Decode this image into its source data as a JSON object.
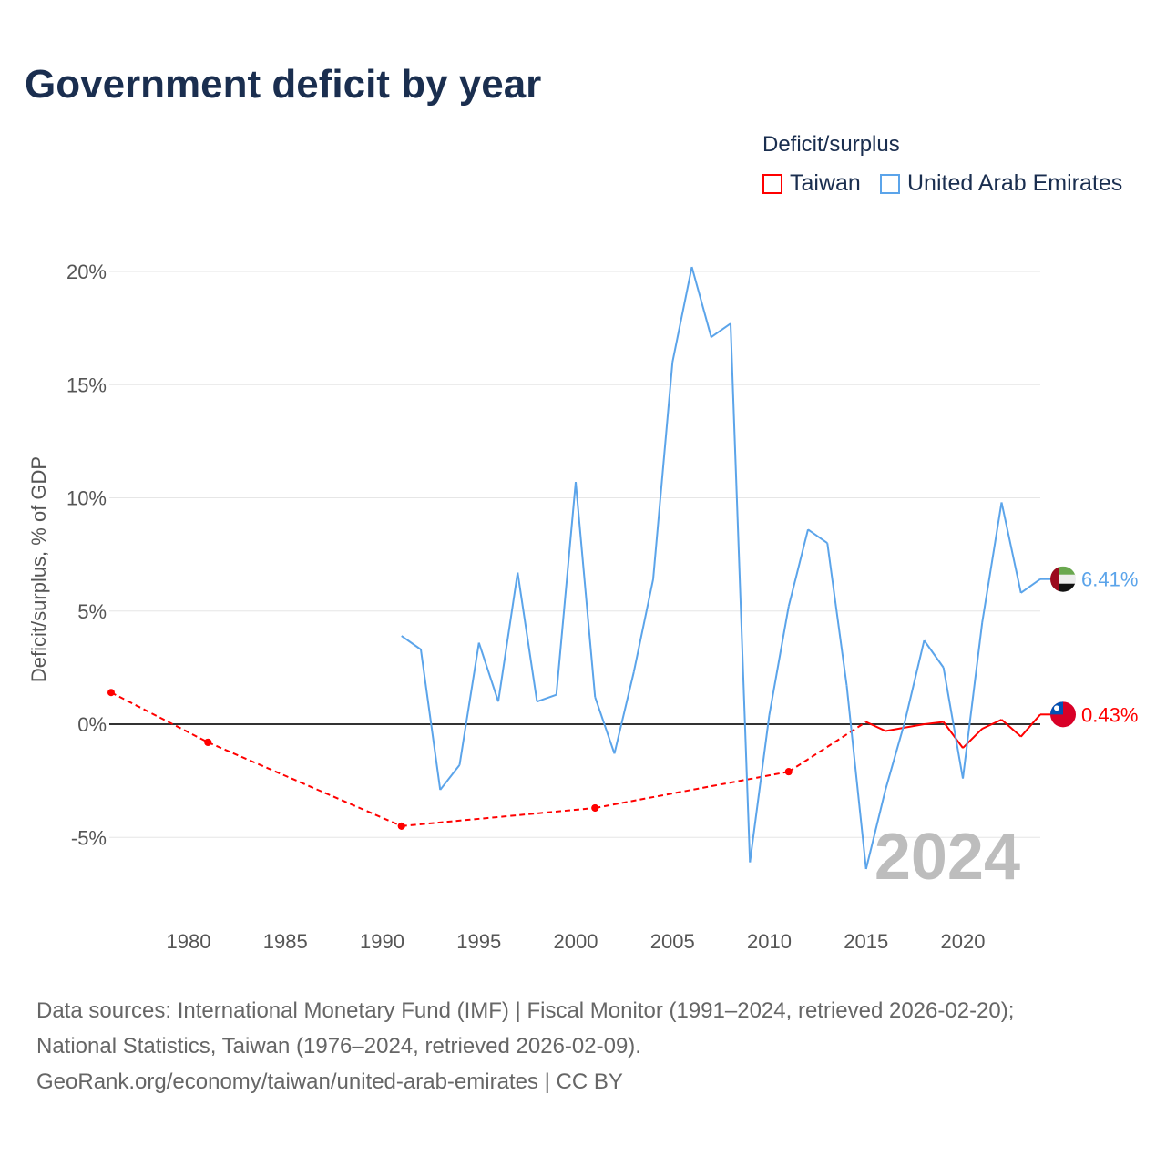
{
  "title": "Government deficit by year",
  "chart_data": {
    "type": "line",
    "title": "Government deficit by year",
    "ylabel": "Deficit/surplus, % of GDP",
    "xlabel": "",
    "legend_title": "Deficit/surplus",
    "legend_position": "top-right",
    "ylim": [
      -7,
      20.5
    ],
    "xlim": [
      1976,
      2024
    ],
    "yticks": [
      20,
      15,
      10,
      5,
      0,
      -5
    ],
    "ytick_labels": [
      "20%",
      "15%",
      "10%",
      "5%",
      "0%",
      "-5%"
    ],
    "xticks": [
      1980,
      1985,
      1990,
      1995,
      2000,
      2005,
      2010,
      2015,
      2020
    ],
    "xtick_labels": [
      "1980",
      "1985",
      "1990",
      "1995",
      "2000",
      "2005",
      "2010",
      "2015",
      "2020"
    ],
    "watermark_year": "2024",
    "series": [
      {
        "name": "Taiwan",
        "color": "#ff0000",
        "end_label": "0.43%",
        "x": [
          1976,
          1981,
          1991,
          2001,
          2011,
          2015,
          2016,
          2017,
          2018,
          2019,
          2020,
          2021,
          2022,
          2023,
          2024
        ],
        "y": [
          1.4,
          -0.8,
          -4.5,
          -3.7,
          -2.1,
          0.1,
          -0.3,
          -0.15,
          0.0,
          0.1,
          -1.05,
          -0.2,
          0.2,
          -0.55,
          0.43
        ]
      },
      {
        "name": "United Arab Emirates",
        "color": "#5ba4ea",
        "end_label": "6.41%",
        "x": [
          1991,
          1992,
          1993,
          1994,
          1995,
          1996,
          1997,
          1998,
          1999,
          2000,
          2001,
          2002,
          2003,
          2004,
          2005,
          2006,
          2007,
          2008,
          2009,
          2010,
          2011,
          2012,
          2013,
          2014,
          2015,
          2016,
          2017,
          2018,
          2019,
          2020,
          2021,
          2022,
          2023,
          2024
        ],
        "y": [
          3.9,
          3.3,
          -2.9,
          -1.8,
          3.6,
          1.0,
          6.7,
          1.0,
          1.3,
          10.7,
          1.2,
          -1.3,
          2.3,
          6.4,
          16.0,
          20.2,
          17.1,
          17.7,
          -6.1,
          0.4,
          5.2,
          8.6,
          8.0,
          1.7,
          -6.4,
          -2.9,
          0.1,
          3.7,
          2.5,
          -2.4,
          4.5,
          9.8,
          5.8,
          6.41
        ]
      }
    ]
  },
  "footer": {
    "line1": "Data sources: International Monetary Fund (IMF) | Fiscal Monitor (1991–2024, retrieved 2026-02-20);",
    "line2": "National Statistics, Taiwan (1976–2024, retrieved 2026-02-09).",
    "line3": "GeoRank.org/economy/taiwan/united-arab-emirates | CC BY"
  }
}
